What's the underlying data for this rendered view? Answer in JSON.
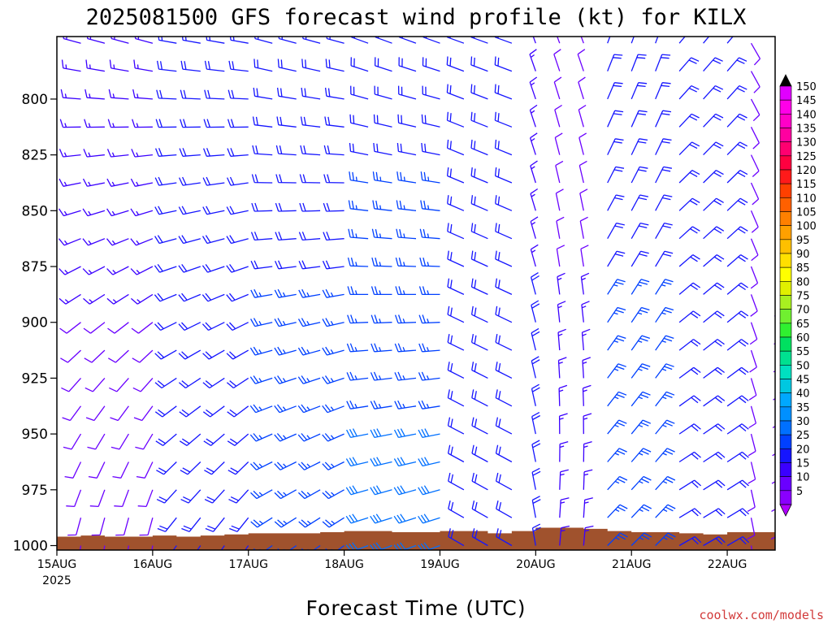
{
  "chart_data": {
    "type": "wind-barb time-height profile",
    "title": "2025081500 GFS forecast wind profile (kt) for KILX",
    "xlabel": "Forecast Time (UTC)",
    "ylabel": "",
    "credit": "coolwx.com/models",
    "y_axis": {
      "unit": "hPa",
      "ylim": [
        1002,
        772
      ],
      "ticks": [
        800,
        825,
        850,
        875,
        900,
        925,
        950,
        975,
        1000
      ],
      "tick_labels": [
        "800",
        "825",
        "850",
        "875",
        "900",
        "925",
        "950",
        "975",
        "1000"
      ]
    },
    "x_axis": {
      "unit": "hours from 2025-08-15 00 UTC",
      "xlim": [
        0,
        180
      ],
      "ticks": [
        0,
        24,
        48,
        72,
        96,
        120,
        144,
        168
      ],
      "tick_labels": [
        "15AUG",
        "16AUG",
        "17AUG",
        "18AUG",
        "19AUG",
        "20AUG",
        "21AUG",
        "22AUG"
      ],
      "year_label": "2025"
    },
    "pressure_levels": [
      775,
      787.5,
      800,
      812.5,
      825,
      837.5,
      850,
      862.5,
      875,
      887.5,
      900,
      912.5,
      925,
      937.5,
      950,
      962.5,
      975,
      987.5,
      1000
    ],
    "times": [
      0,
      6,
      12,
      18,
      24,
      30,
      36,
      42,
      48,
      54,
      60,
      66,
      72,
      78,
      84,
      90,
      96,
      102,
      108,
      114,
      120,
      126,
      132,
      138,
      144,
      150,
      156,
      162,
      168,
      174,
      180
    ],
    "wind_segments": [
      {
        "t0": 0,
        "t1": 27,
        "dir_top": 285,
        "dir_sfc": 190,
        "spd_top": 15,
        "spd_sfc": 10,
        "note": "westerly aloft veering from southerly near surface"
      },
      {
        "t0": 27,
        "t1": 51,
        "dir_top": 280,
        "dir_sfc": 215,
        "spd_top": 20,
        "spd_sfc": 20
      },
      {
        "t0": 51,
        "t1": 75,
        "dir_top": 285,
        "dir_sfc": 235,
        "spd_top": 20,
        "spd_sfc": 25
      },
      {
        "t0": 75,
        "t1": 99,
        "dir_top": 290,
        "dir_sfc": 250,
        "spd_top": 20,
        "spd_sfc": 30
      },
      {
        "t0": 99,
        "t1": 117,
        "dir_top": 290,
        "dir_sfc": 300,
        "spd_top": 20,
        "spd_sfc": 20
      },
      {
        "t0": 117,
        "t1": 126,
        "dir_top": 340,
        "dir_sfc": 350,
        "spd_top": 15,
        "spd_sfc": 20
      },
      {
        "t0": 126,
        "t1": 138,
        "dir_top": 340,
        "dir_sfc": 5,
        "spd_top": 10,
        "spd_sfc": 15
      },
      {
        "t0": 138,
        "t1": 156,
        "dir_top": 20,
        "dir_sfc": 45,
        "spd_top": 20,
        "spd_sfc": 25
      },
      {
        "t0": 156,
        "t1": 174,
        "dir_top": 40,
        "dir_sfc": 60,
        "spd_top": 20,
        "spd_sfc": 20
      },
      {
        "t0": 174,
        "t1": 180,
        "dir_top": 150,
        "dir_sfc": 170,
        "spd_top": 10,
        "spd_sfc": 10
      }
    ],
    "surface_pressure": {
      "times": [
        0,
        6,
        12,
        18,
        24,
        30,
        36,
        42,
        48,
        54,
        60,
        66,
        72,
        78,
        84,
        90,
        96,
        102,
        108,
        114,
        120,
        126,
        132,
        138,
        144,
        150,
        156,
        162,
        168,
        174,
        180
      ],
      "values": [
        996,
        995.5,
        996,
        996,
        995.5,
        996,
        995.5,
        995,
        994.5,
        994.5,
        994.5,
        994,
        993.5,
        993.5,
        994,
        994,
        993.5,
        993.5,
        994.5,
        993.5,
        992,
        992,
        992.5,
        993.5,
        994,
        994,
        994.5,
        995,
        994,
        994,
        994
      ]
    },
    "colorbar": {
      "labels": [
        "5",
        "10",
        "15",
        "20",
        "25",
        "30",
        "35",
        "40",
        "45",
        "50",
        "55",
        "60",
        "65",
        "70",
        "75",
        "80",
        "85",
        "90",
        "95",
        "100",
        "105",
        "110",
        "115",
        "120",
        "125",
        "130",
        "135",
        "140",
        "145",
        "150"
      ],
      "colors": [
        "#8a00ff",
        "#6a00ff",
        "#3a00ff",
        "#1515ff",
        "#0040ff",
        "#0070ff",
        "#0090ff",
        "#00a8ff",
        "#00c8e0",
        "#00e0c0",
        "#00e090",
        "#00e060",
        "#30f030",
        "#70f030",
        "#a8f020",
        "#e0f000",
        "#ffff00",
        "#ffe000",
        "#ffc000",
        "#ffa000",
        "#ff8000",
        "#ff6000",
        "#ff4000",
        "#ff1a1a",
        "#ff0040",
        "#ff0070",
        "#ff00a0",
        "#ff00c8",
        "#ff00e8",
        "#e000ff"
      ]
    },
    "ground_color": "#a0522d"
  }
}
